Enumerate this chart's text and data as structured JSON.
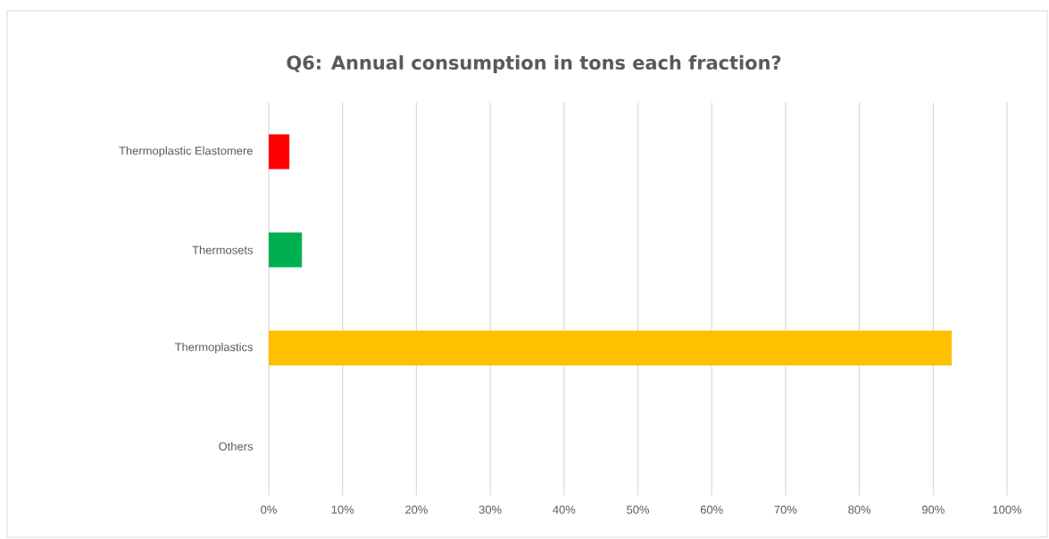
{
  "chart_data": {
    "type": "bar",
    "orientation": "horizontal",
    "title": "Q6: Annual consumption in tons each fraction?",
    "categories": [
      "Thermoplastic Elastomere",
      "Thermosets",
      "Thermoplastics",
      "Others"
    ],
    "values": [
      2.8,
      4.5,
      92.5,
      0
    ],
    "colors": [
      "#ff0000",
      "#00b050",
      "#ffc000",
      "#4472c4"
    ],
    "xlim": [
      0,
      100
    ],
    "xticks": [
      {
        "value": 0,
        "label": "0%"
      },
      {
        "value": 10,
        "label": "10%"
      },
      {
        "value": 20,
        "label": "20%"
      },
      {
        "value": 30,
        "label": "30%"
      },
      {
        "value": 40,
        "label": "40%"
      },
      {
        "value": 50,
        "label": "50%"
      },
      {
        "value": 60,
        "label": "60%"
      },
      {
        "value": 70,
        "label": "70%"
      },
      {
        "value": 80,
        "label": "80%"
      },
      {
        "value": 90,
        "label": "90%"
      },
      {
        "value": 100,
        "label": "100%"
      }
    ],
    "grid": "x"
  }
}
